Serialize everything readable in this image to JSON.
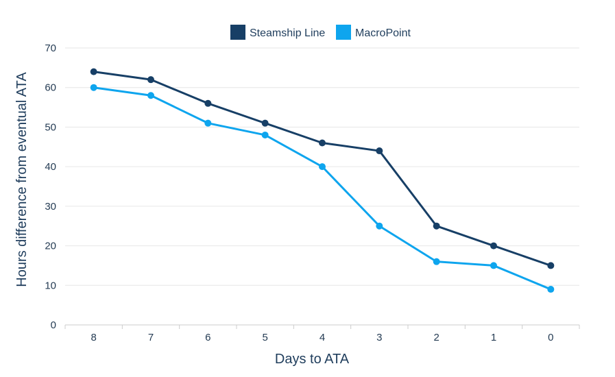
{
  "colors": {
    "steamship": "#173f66",
    "macropoint": "#0ea5ee",
    "grid": "#e6e6e6",
    "axis": "#cccccc",
    "text": "#1f3d5c"
  },
  "chart_data": {
    "type": "line",
    "categories": [
      "8",
      "7",
      "6",
      "5",
      "4",
      "3",
      "2",
      "1",
      "0"
    ],
    "series": [
      {
        "name": "Steamship Line",
        "color": "#173f66",
        "values": [
          64,
          62,
          56,
          51,
          46,
          44,
          25,
          20,
          15
        ]
      },
      {
        "name": "MacroPoint",
        "color": "#0ea5ee",
        "values": [
          60,
          58,
          51,
          48,
          40,
          25,
          16,
          15,
          9
        ]
      }
    ],
    "xlabel": "Days to ATA",
    "ylabel": "Hours difference from eventual ATA",
    "ylim": [
      0,
      70
    ],
    "yticks": [
      0,
      10,
      20,
      30,
      40,
      50,
      60,
      70
    ],
    "grid": true,
    "legend_position": "top-center"
  }
}
